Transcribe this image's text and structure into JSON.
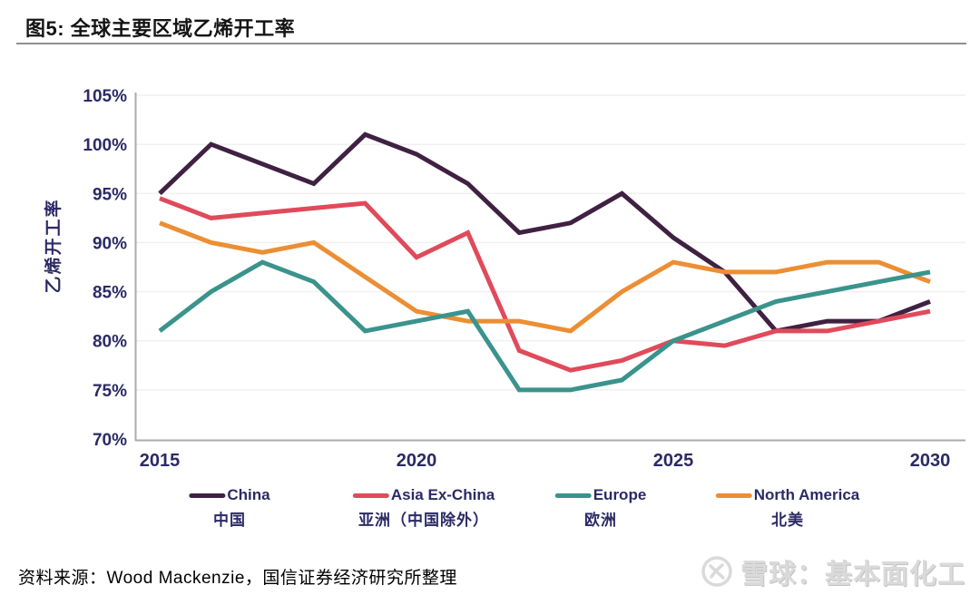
{
  "page": {
    "title": "图5: 全球主要区域乙烯开工率",
    "source_note": "资料来源：Wood Mackenzie，国信证券经济研究所整理",
    "watermark": "雪球：基本面化工"
  },
  "chart_data": {
    "type": "line",
    "title": "图5: 全球主要区域乙烯开工率",
    "ylabel": "乙烯开工率",
    "xlabel": "",
    "x": [
      2015,
      2016,
      2017,
      2018,
      2019,
      2020,
      2021,
      2022,
      2023,
      2024,
      2025,
      2026,
      2027,
      2028,
      2029,
      2030
    ],
    "x_tick_values": [
      2015,
      2020,
      2025,
      2030
    ],
    "x_tick_labels": [
      "2015",
      "2020",
      "2025",
      "2030"
    ],
    "y_tick_values": [
      70,
      75,
      80,
      85,
      90,
      95,
      100,
      105
    ],
    "y_tick_labels": [
      "70%",
      "75%",
      "80%",
      "85%",
      "90%",
      "95%",
      "100%",
      "105%"
    ],
    "ylim": [
      70,
      105
    ],
    "grid": "horizontal-faint",
    "legend_position": "bottom",
    "axis_text_color": "#2b2a66",
    "series": [
      {
        "name": "China",
        "name_cn": "中国",
        "color": "#3f2142",
        "values": [
          95,
          100,
          98,
          96,
          101,
          99,
          96,
          91,
          92,
          95,
          90.5,
          87,
          81,
          82,
          82,
          84
        ]
      },
      {
        "name": "Asia Ex-China",
        "name_cn": "亚洲（中国除外）",
        "color": "#e04a5a",
        "values": [
          94.5,
          92.5,
          93,
          93.5,
          94,
          88.5,
          91,
          79,
          77,
          78,
          80,
          79.5,
          81,
          81,
          82,
          83
        ]
      },
      {
        "name": "Europe",
        "name_cn": "欧洲",
        "color": "#3a938c",
        "values": [
          81,
          85,
          88,
          86,
          81,
          82,
          83,
          75,
          75,
          76,
          80,
          82,
          84,
          85,
          86,
          87
        ]
      },
      {
        "name": "North America",
        "name_cn": "北美",
        "color": "#ec8e33",
        "values": [
          92,
          90,
          89,
          90,
          86.5,
          83,
          82,
          82,
          81,
          85,
          88,
          87,
          87,
          88,
          88,
          86
        ]
      }
    ]
  }
}
